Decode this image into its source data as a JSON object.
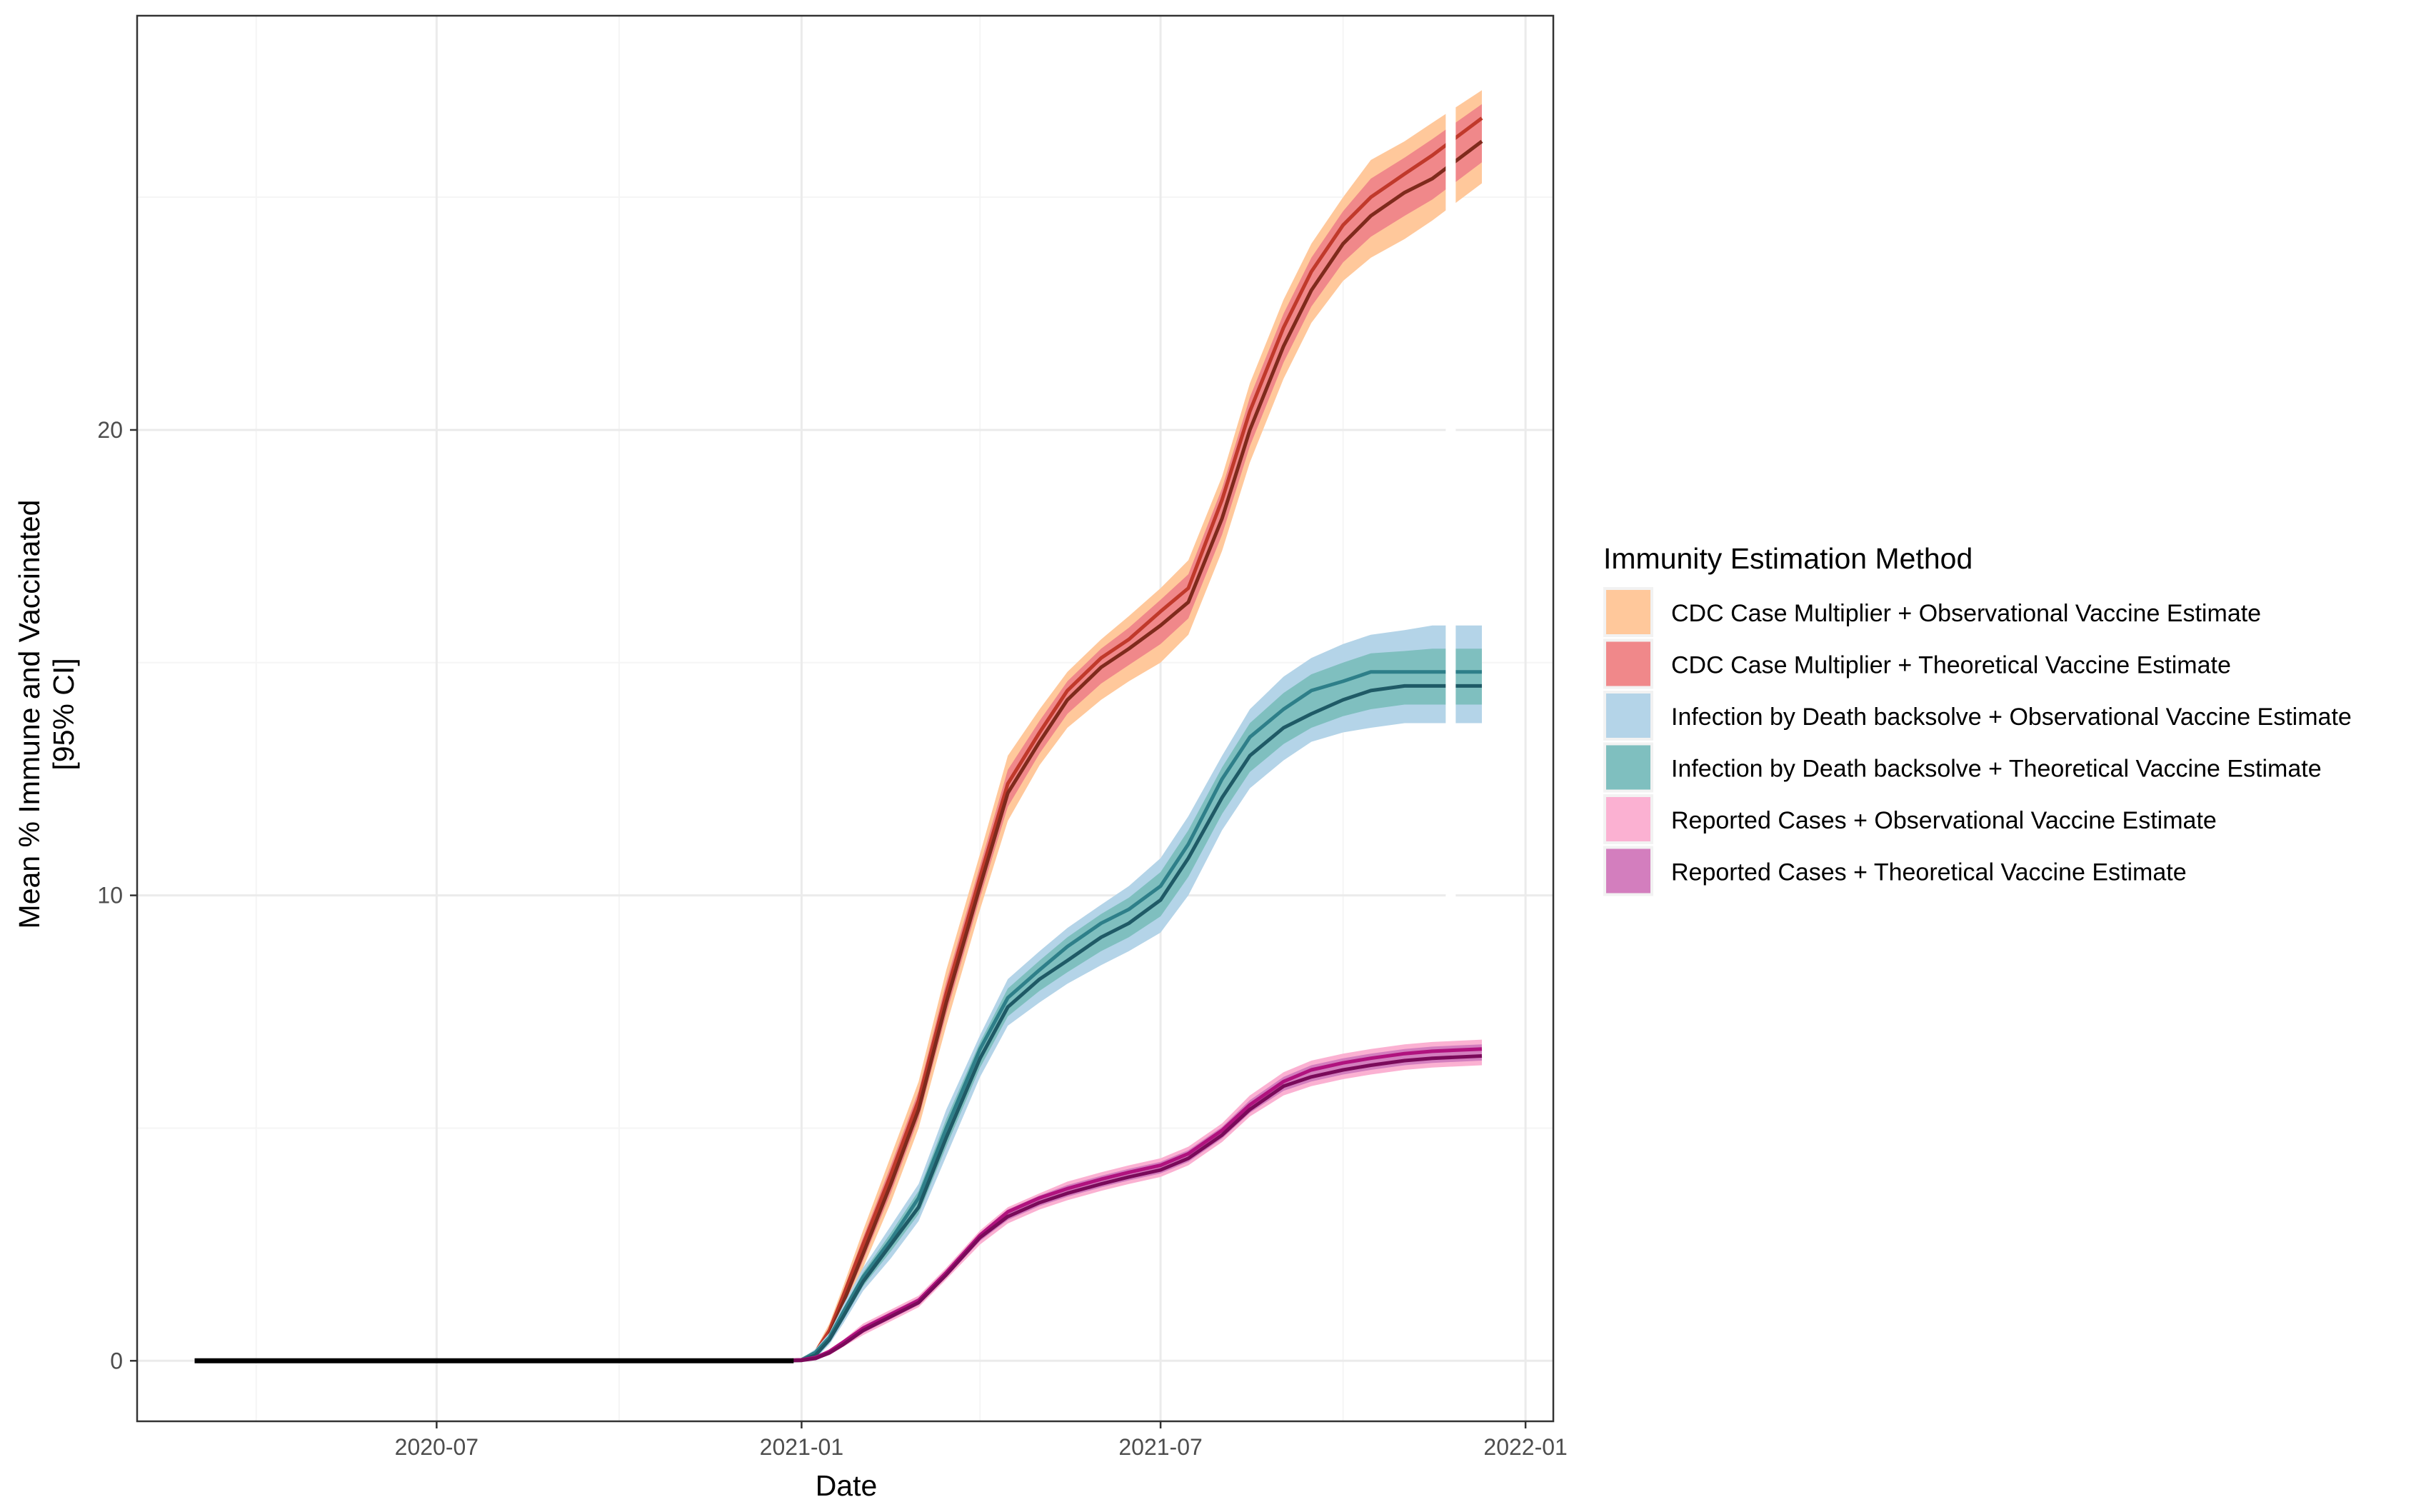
{
  "chart_data": {
    "type": "line",
    "title": "",
    "xlabel": "Date",
    "ylabel": "Mean % Immune and Vaccinated",
    "ylabel_line2": "[95% CI]",
    "x_ticks": [
      "2020-07",
      "2021-01",
      "2021-07",
      "2022-01"
    ],
    "y_ticks": [
      "0",
      "10",
      "20"
    ],
    "xlim": [
      "2020-02-01",
      "2022-01-15"
    ],
    "ylim": [
      -1.3,
      28.9
    ],
    "grid": true,
    "legend_position": "right",
    "legend_title": "Immunity Estimation Method",
    "legend": [
      {
        "label": "CDC Case Multiplier + Observational Vaccine Estimate",
        "color": "#FFC89B"
      },
      {
        "label": "CDC Case Multiplier + Theoretical Vaccine Estimate",
        "color": "#F0888A"
      },
      {
        "label": "Infection by Death backsolve + Observational Vaccine Estimate",
        "color": "#B4D4E8"
      },
      {
        "label": "Infection by Death backsolve + Theoretical Vaccine Estimate",
        "color": "#7FBFBF"
      },
      {
        "label": "Reported Cases + Observational Vaccine Estimate",
        "color": "#FBB1D2"
      },
      {
        "label": "Reported Cases + Theoretical Vaccine Estimate",
        "color": "#D37EBE"
      }
    ],
    "series": [
      {
        "group": "CDC Case Multiplier",
        "x": [
          "2020-03-01",
          "2020-12-20",
          "2021-01-01",
          "2021-01-08",
          "2021-01-15",
          "2021-01-22",
          "2021-02-01",
          "2021-02-15",
          "2021-03-01",
          "2021-03-15",
          "2021-04-01",
          "2021-04-15",
          "2021-05-01",
          "2021-05-15",
          "2021-06-01",
          "2021-06-15",
          "2021-07-01",
          "2021-07-15",
          "2021-08-01",
          "2021-08-15",
          "2021-09-01",
          "2021-09-15",
          "2021-10-01",
          "2021-10-15",
          "2021-11-01",
          "2021-11-15",
          "2021-12-10"
        ],
        "upper": [
          0,
          0,
          0.05,
          0.25,
          0.8,
          1.6,
          2.8,
          4.4,
          6.0,
          8.4,
          10.9,
          13.0,
          14.0,
          14.8,
          15.5,
          16.0,
          16.6,
          17.2,
          19.0,
          21.0,
          22.8,
          24.0,
          25.0,
          25.8,
          26.2,
          26.6,
          27.3
        ],
        "mid_hi": [
          0,
          0,
          0.02,
          0.18,
          0.65,
          1.4,
          2.5,
          4.0,
          5.6,
          7.9,
          10.4,
          12.4,
          13.5,
          14.4,
          15.1,
          15.5,
          16.1,
          16.6,
          18.5,
          20.4,
          22.2,
          23.4,
          24.4,
          25.0,
          25.5,
          25.9,
          26.7
        ],
        "mid_lo": [
          0,
          0,
          0.01,
          0.12,
          0.55,
          1.25,
          2.3,
          3.8,
          5.4,
          7.7,
          10.2,
          12.2,
          13.3,
          14.2,
          14.9,
          15.3,
          15.8,
          16.3,
          18.1,
          20.0,
          21.8,
          23.0,
          24.0,
          24.6,
          25.1,
          25.4,
          26.2
        ],
        "lower": [
          0,
          0,
          0,
          0.05,
          0.4,
          1.05,
          2.0,
          3.4,
          5.0,
          7.2,
          9.7,
          11.6,
          12.8,
          13.6,
          14.2,
          14.6,
          15.0,
          15.6,
          17.4,
          19.3,
          21.1,
          22.3,
          23.2,
          23.7,
          24.1,
          24.5,
          25.3
        ]
      },
      {
        "group": "Infection by Death backsolve",
        "x": [
          "2020-03-01",
          "2020-12-20",
          "2021-01-01",
          "2021-01-08",
          "2021-01-15",
          "2021-01-22",
          "2021-02-01",
          "2021-02-15",
          "2021-03-01",
          "2021-03-15",
          "2021-04-01",
          "2021-04-15",
          "2021-05-01",
          "2021-05-15",
          "2021-06-01",
          "2021-06-15",
          "2021-07-01",
          "2021-07-15",
          "2021-08-01",
          "2021-08-15",
          "2021-09-01",
          "2021-09-15",
          "2021-10-01",
          "2021-10-15",
          "2021-11-01",
          "2021-11-15",
          "2021-12-10"
        ],
        "upper": [
          0,
          0,
          0.05,
          0.25,
          0.6,
          1.2,
          2.0,
          2.9,
          3.8,
          5.4,
          7.0,
          8.2,
          8.8,
          9.3,
          9.8,
          10.2,
          10.8,
          11.7,
          13.0,
          14.0,
          14.7,
          15.1,
          15.4,
          15.6,
          15.7,
          15.8,
          15.8
        ],
        "mid_hi": [
          0,
          0,
          0.02,
          0.18,
          0.5,
          1.05,
          1.8,
          2.6,
          3.5,
          5.0,
          6.7,
          7.8,
          8.4,
          8.9,
          9.4,
          9.7,
          10.2,
          11.1,
          12.5,
          13.4,
          14.0,
          14.4,
          14.6,
          14.8,
          14.8,
          14.8,
          14.8
        ],
        "mid_lo": [
          0,
          0,
          0.01,
          0.12,
          0.45,
          0.95,
          1.7,
          2.5,
          3.3,
          4.8,
          6.5,
          7.6,
          8.2,
          8.6,
          9.1,
          9.4,
          9.9,
          10.8,
          12.1,
          13.0,
          13.6,
          13.9,
          14.2,
          14.4,
          14.5,
          14.5,
          14.5
        ],
        "lower": [
          0,
          0,
          0,
          0.05,
          0.35,
          0.8,
          1.5,
          2.2,
          3.0,
          4.4,
          6.1,
          7.2,
          7.7,
          8.1,
          8.5,
          8.8,
          9.2,
          10.0,
          11.4,
          12.3,
          12.9,
          13.3,
          13.5,
          13.6,
          13.7,
          13.7,
          13.7
        ]
      },
      {
        "group": "Reported Cases",
        "x": [
          "2020-03-01",
          "2020-12-20",
          "2021-01-01",
          "2021-01-08",
          "2021-01-15",
          "2021-01-22",
          "2021-02-01",
          "2021-02-15",
          "2021-03-01",
          "2021-03-15",
          "2021-04-01",
          "2021-04-15",
          "2021-05-01",
          "2021-05-15",
          "2021-06-01",
          "2021-06-15",
          "2021-07-01",
          "2021-07-15",
          "2021-08-01",
          "2021-08-15",
          "2021-09-01",
          "2021-09-15",
          "2021-10-01",
          "2021-10-15",
          "2021-11-01",
          "2021-11-15",
          "2021-12-10"
        ],
        "upper": [
          0,
          0,
          0.03,
          0.1,
          0.25,
          0.45,
          0.8,
          1.1,
          1.4,
          2.0,
          2.8,
          3.3,
          3.6,
          3.85,
          4.05,
          4.2,
          4.35,
          4.6,
          5.1,
          5.7,
          6.2,
          6.45,
          6.6,
          6.7,
          6.8,
          6.85,
          6.9
        ],
        "mid_hi": [
          0,
          0,
          0.02,
          0.07,
          0.2,
          0.4,
          0.7,
          1.0,
          1.3,
          1.9,
          2.7,
          3.2,
          3.5,
          3.7,
          3.9,
          4.05,
          4.2,
          4.45,
          4.95,
          5.5,
          6.0,
          6.25,
          6.4,
          6.5,
          6.6,
          6.65,
          6.7
        ],
        "mid_lo": [
          0,
          0,
          0.01,
          0.05,
          0.17,
          0.35,
          0.65,
          0.95,
          1.25,
          1.85,
          2.65,
          3.1,
          3.4,
          3.6,
          3.8,
          3.95,
          4.1,
          4.35,
          4.85,
          5.4,
          5.9,
          6.1,
          6.25,
          6.35,
          6.45,
          6.5,
          6.55
        ],
        "lower": [
          0,
          0,
          0,
          0.02,
          0.12,
          0.3,
          0.55,
          0.85,
          1.15,
          1.75,
          2.5,
          2.95,
          3.25,
          3.45,
          3.65,
          3.8,
          3.95,
          4.2,
          4.7,
          5.25,
          5.7,
          5.9,
          6.05,
          6.15,
          6.25,
          6.3,
          6.35
        ]
      }
    ]
  },
  "styles": {
    "panel_border": "#333333",
    "grid_major": "#ebebeb",
    "grid_minor": "#f5f5f5",
    "axis_text": "#4d4d4d",
    "band_colors": {
      "CDC Case Multiplier": {
        "outer": "#FFC89B",
        "inner": "#F0888A",
        "line_hi": "#c0392b",
        "line_lo": "#7f2a1c"
      },
      "Infection by Death backsolve": {
        "outer": "#B4D4E8",
        "inner": "#7FBFBF",
        "line_hi": "#2e7f89",
        "line_lo": "#1f5a66"
      },
      "Reported Cases": {
        "outer": "#FBB1D2",
        "inner": "#D37EBE",
        "line_hi": "#b0127e",
        "line_lo": "#7a0a5a"
      }
    },
    "baseline_color": "#000000"
  }
}
